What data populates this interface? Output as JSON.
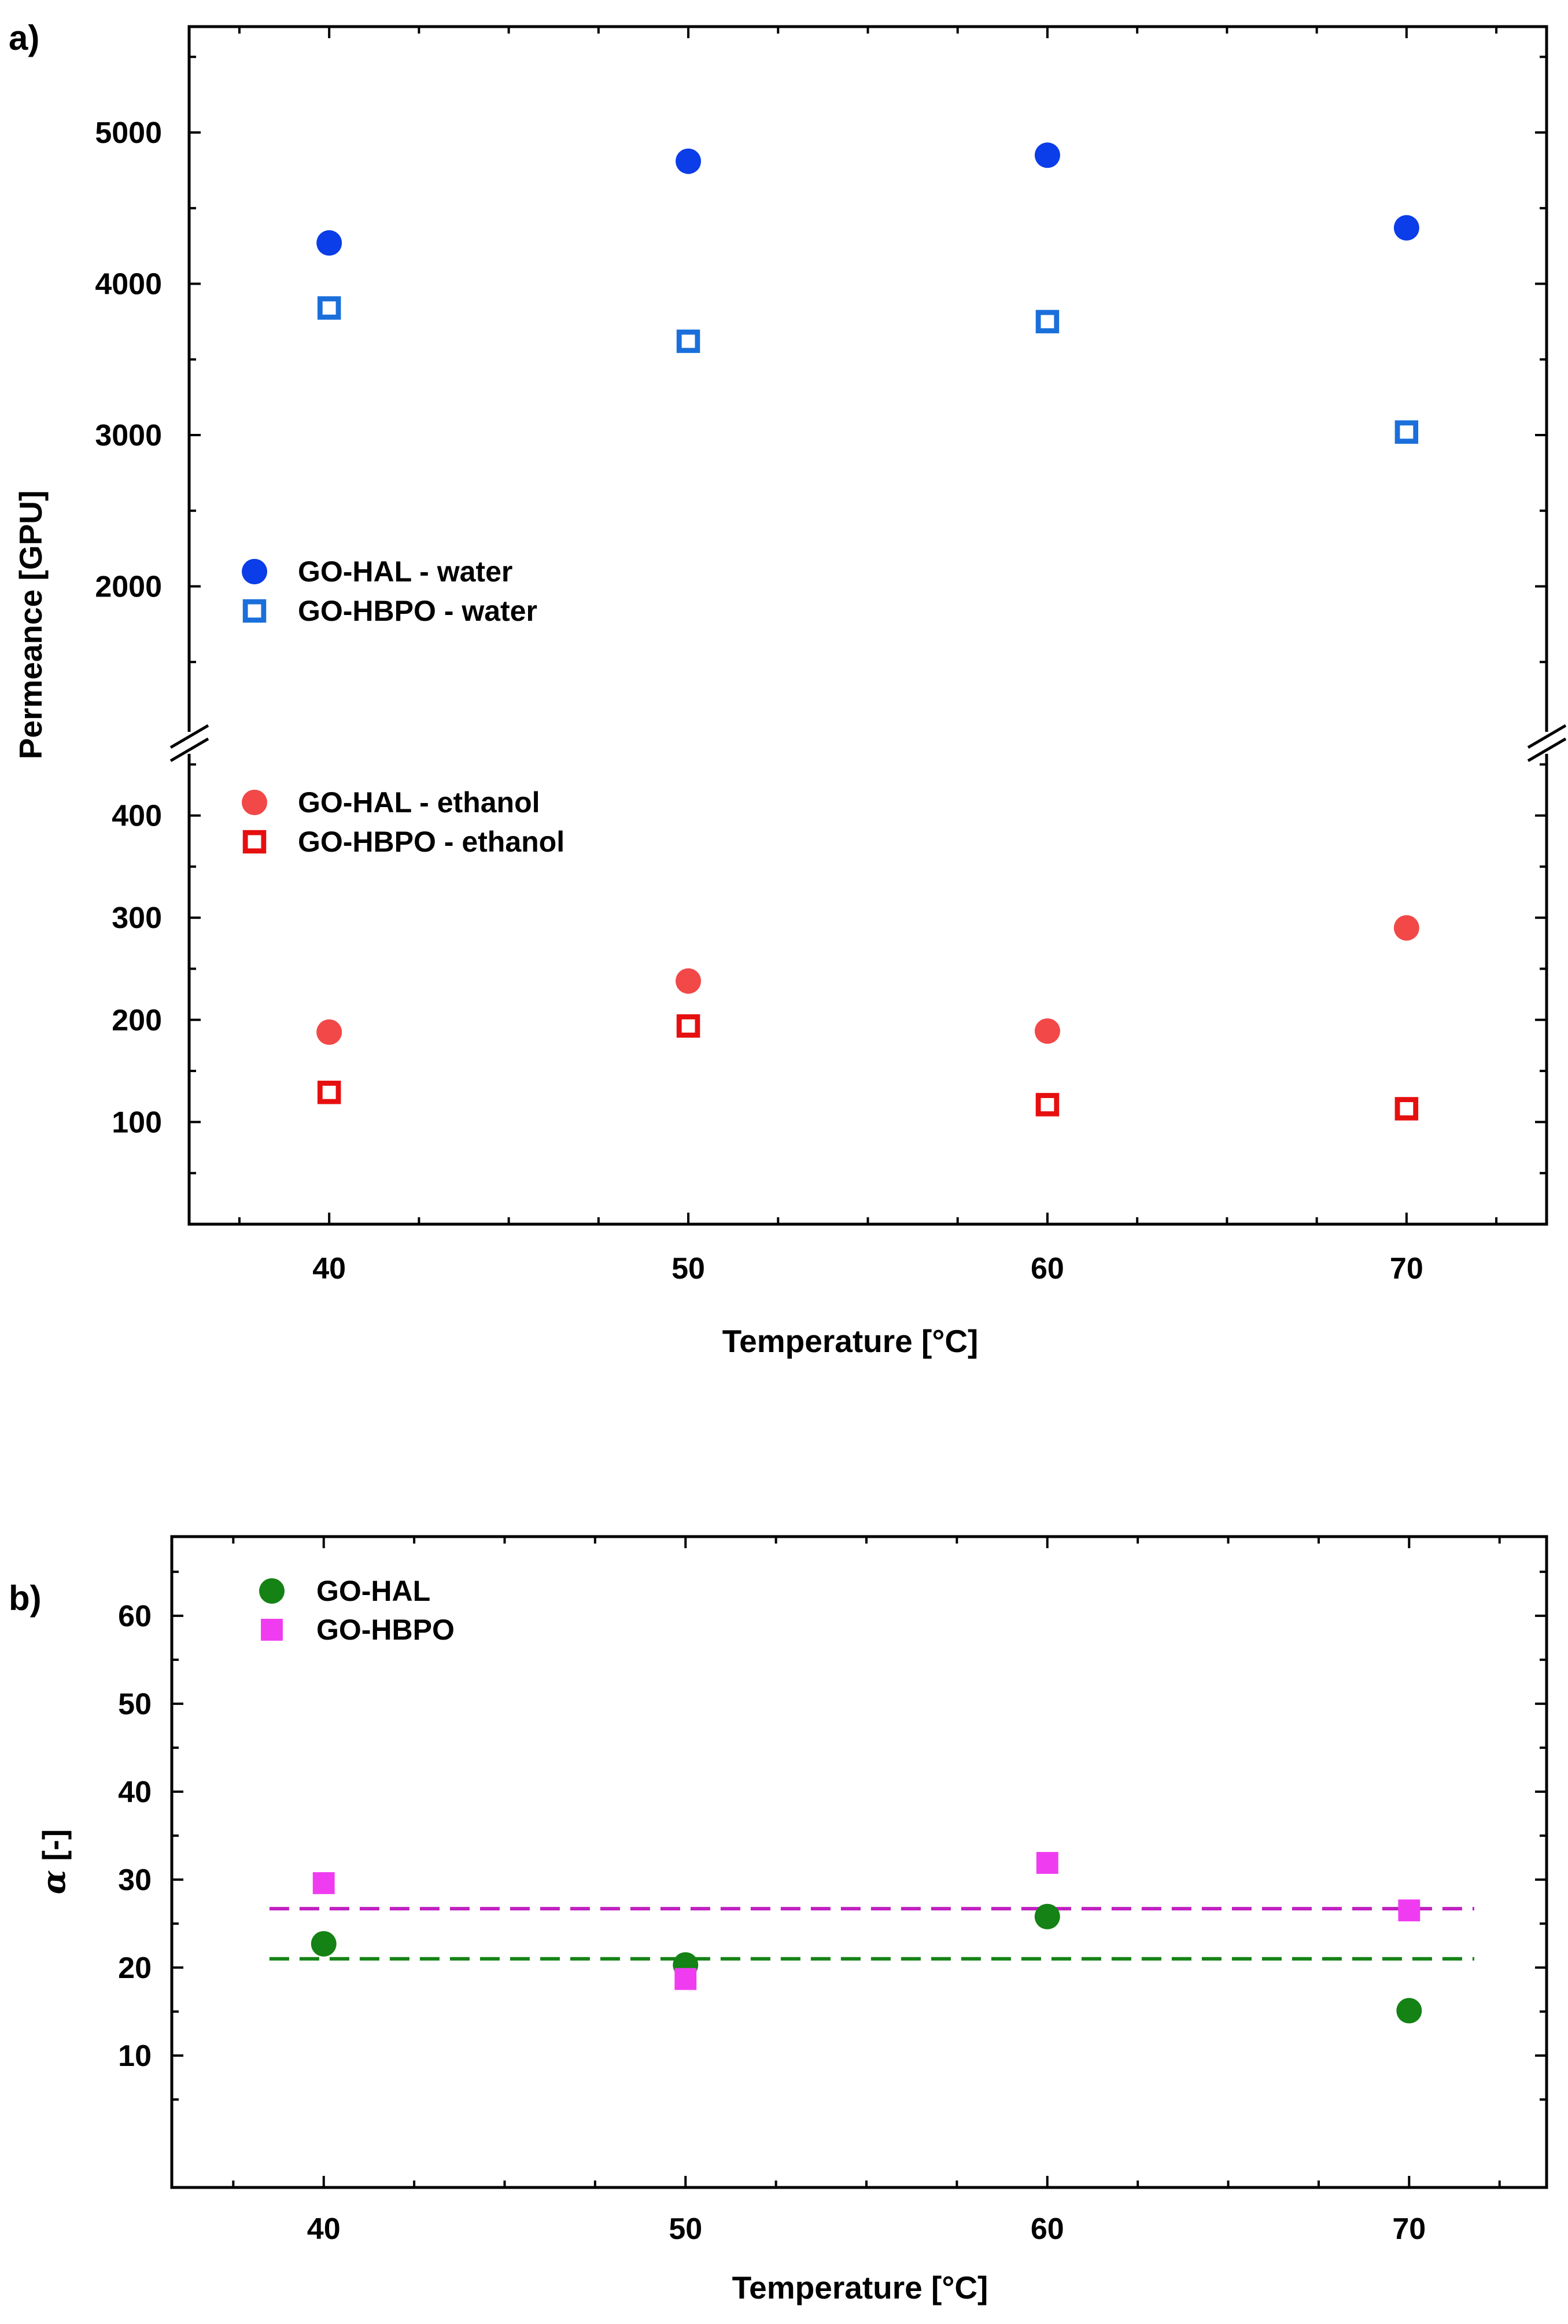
{
  "chart_data": [
    {
      "type": "scatter",
      "panel_label": "a)",
      "xlabel": "Temperature [°C]",
      "ylabel": "Permeance [GPU]",
      "x_ticks": [
        40,
        50,
        60,
        70
      ],
      "xlim": [
        36.1,
        73.9
      ],
      "broken_axis": true,
      "segments": [
        {
          "name": "upper",
          "ylim": [
            1000,
            5700
          ],
          "y_ticks": [
            2000,
            3000,
            4000,
            5000
          ],
          "y_minor": [
            1500,
            2500,
            3500,
            4500,
            5500
          ]
        },
        {
          "name": "lower",
          "ylim": [
            0,
            470
          ],
          "y_ticks": [
            100,
            200,
            300,
            400
          ],
          "y_minor": [
            50,
            150,
            250,
            350,
            450
          ]
        }
      ],
      "series": [
        {
          "name": "GO-HAL - water",
          "marker": "circle-filled",
          "color": "#0b3de8",
          "segment": "upper",
          "x": [
            40,
            50,
            60,
            70
          ],
          "y": [
            4270,
            4810,
            4850,
            4370
          ]
        },
        {
          "name": "GO-HBPO - water",
          "marker": "square-open",
          "color": "#1a6fdb",
          "segment": "upper",
          "x": [
            40,
            50,
            60,
            70
          ],
          "y": [
            3840,
            3620,
            3750,
            3020
          ]
        },
        {
          "name": "GO-HAL - ethanol",
          "marker": "circle-filled",
          "color": "#f24848",
          "segment": "lower",
          "x": [
            40,
            50,
            60,
            70
          ],
          "y": [
            188,
            238,
            189,
            290
          ]
        },
        {
          "name": "GO-HBPO - ethanol",
          "marker": "square-open",
          "color": "#e60f0f",
          "segment": "lower",
          "x": [
            40,
            50,
            60,
            70
          ],
          "y": [
            129,
            194,
            117,
            113
          ]
        }
      ],
      "legend_upper": [
        "GO-HAL - water",
        "GO-HBPO - water"
      ],
      "legend_lower": [
        "GO-HAL - ethanol",
        "GO-HBPO - ethanol"
      ]
    },
    {
      "type": "scatter",
      "panel_label": "b)",
      "xlabel": "Temperature [°C]",
      "ylabel": "α [-]",
      "ylabel_symbol": "α",
      "ylabel_rest": " [-]",
      "x_ticks": [
        40,
        50,
        60,
        70
      ],
      "xlim": [
        35.8,
        73.8
      ],
      "ylim": [
        -5,
        69
      ],
      "y_ticks": [
        10,
        20,
        30,
        40,
        50,
        60
      ],
      "y_minor": [
        5,
        15,
        25,
        35,
        45,
        55,
        65
      ],
      "series": [
        {
          "name": "GO-HAL",
          "marker": "circle-filled",
          "color": "#148214",
          "x": [
            40,
            50,
            60,
            70
          ],
          "y": [
            22.7,
            20.3,
            25.8,
            15.1
          ]
        },
        {
          "name": "GO-HBPO",
          "marker": "square-filled",
          "color": "#f03cf0",
          "x": [
            40,
            50,
            60,
            70
          ],
          "y": [
            29.6,
            18.7,
            31.9,
            26.5
          ]
        }
      ],
      "reference_lines": [
        {
          "series": "GO-HBPO",
          "y": 26.7,
          "x_range": [
            38.5,
            71.8
          ],
          "color": "#c020c0",
          "style": "dashed"
        },
        {
          "series": "GO-HAL",
          "y": 21.0,
          "x_range": [
            38.5,
            71.8
          ],
          "color": "#148214",
          "style": "dashed"
        }
      ],
      "legend": [
        "GO-HAL",
        "GO-HBPO"
      ]
    }
  ]
}
